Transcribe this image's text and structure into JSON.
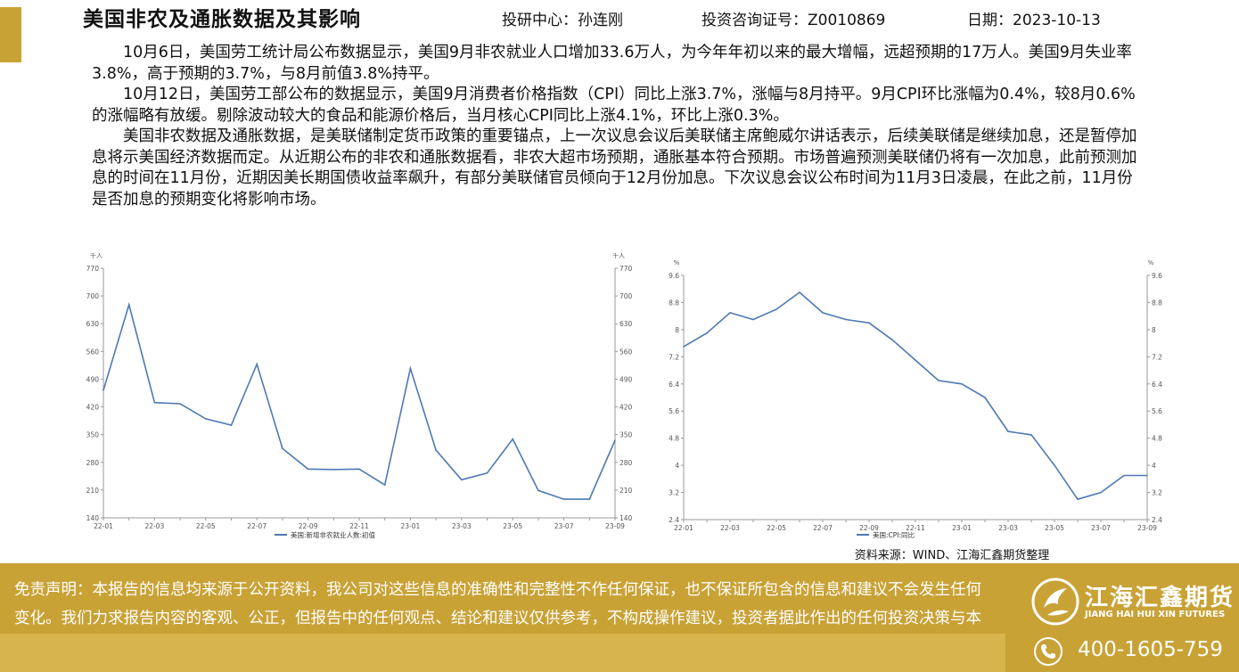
{
  "header": {
    "title": "美国非农及通胀数据及其影响",
    "center": "投研中心：孙连刚",
    "license": "投资咨询证号：Z0010869",
    "date": "日期：2023-10-13"
  },
  "article": {
    "p1": "10月6日，美国劳工统计局公布数据显示，美国9月非农就业人口增加33.6万人，为今年年初以来的最大增幅，远超预期的17万人。美国9月失业率3.8%，高于预期的3.7%，与8月前值3.8%持平。",
    "p2": "10月12日，美国劳工部公布的数据显示，美国9月消费者价格指数（CPI）同比上涨3.7%，涨幅与8月持平。9月CPI环比涨幅为0.4%，较8月0.6%的涨幅略有放缓。剔除波动较大的食品和能源价格后，当月核心CPI同比上涨4.1%，环比上涨0.3%。",
    "p3": "美国非农数据及通胀数据，是美联储制定货币政策的重要锚点，上一次议息会议后美联储主席鲍威尔讲话表示，后续美联储是继续加息，还是暂停加息将示美国经济数据而定。从近期公布的非农和通胀数据看，非农大超市场预期，通胀基本符合预期。市场普遍预测美联储仍将有一次加息，此前预测加息的时间在11月份，近期因美长期国债收益率飙升，有部分美联储官员倾向于12月份加息。下次议息会议公布时间为11月3日凌晨，在此之前，11月份是否加息的预期变化将影响市场。"
  },
  "chart_data": [
    {
      "type": "line",
      "unit_left": "千人",
      "unit_right": "千人",
      "series": [
        {
          "name": "美国:新增非农就业人数:初值",
          "color": "#4e79b4",
          "values": [
            462,
            678,
            431,
            428,
            390,
            374,
            528,
            315,
            263,
            262,
            263,
            223,
            517,
            311,
            236,
            253,
            339,
            209,
            187,
            187,
            336
          ]
        }
      ],
      "x_tick_labels": [
        "22-01",
        "22-03",
        "22-05",
        "22-07",
        "22-09",
        "22-11",
        "23-01",
        "23-03",
        "23-05",
        "23-07",
        "23-09"
      ],
      "ylim": [
        140,
        770
      ],
      "y_ticks": [
        140,
        210,
        280,
        350,
        420,
        490,
        560,
        630,
        700,
        770
      ]
    },
    {
      "type": "line",
      "unit_left": "%",
      "unit_right": "%",
      "series": [
        {
          "name": "美国:CPI:同比",
          "color": "#4e79b4",
          "values": [
            7.5,
            7.9,
            8.5,
            8.3,
            8.6,
            9.1,
            8.5,
            8.3,
            8.2,
            7.7,
            7.1,
            6.5,
            6.4,
            6.0,
            5.0,
            4.9,
            4.0,
            3.0,
            3.2,
            3.7,
            3.7
          ]
        }
      ],
      "x_tick_labels": [
        "22-01",
        "22-03",
        "22-05",
        "22-07",
        "22-09",
        "22-11",
        "23-01",
        "23-03",
        "23-05",
        "23-07",
        "23-09"
      ],
      "ylim": [
        2.4,
        9.6
      ],
      "y_ticks": [
        2.4,
        3.2,
        4,
        4.8,
        5.6,
        6.4,
        7.2,
        8,
        8.8,
        9.6
      ]
    }
  ],
  "source": "资料来源：WIND、江海汇鑫期货整理",
  "footer": {
    "disclaimer": "免责声明：本报告的信息均来源于公开资料，我公司对这些信息的准确性和完整性不作任何保证，也不保证所包含的信息和建议不会发生任何变化。我们力求报告内容的客观、公正，但报告中的任何观点、结论和建议仅供参考，不构成操作建议，投资者据此作出的任何投资决策与本公司和作者无关，由投资者自行承担结果。",
    "brand_name": "江海汇鑫期货",
    "brand_en": "JIANG HAI HUI XIN FUTURES",
    "hotline": "400-1605-759"
  }
}
